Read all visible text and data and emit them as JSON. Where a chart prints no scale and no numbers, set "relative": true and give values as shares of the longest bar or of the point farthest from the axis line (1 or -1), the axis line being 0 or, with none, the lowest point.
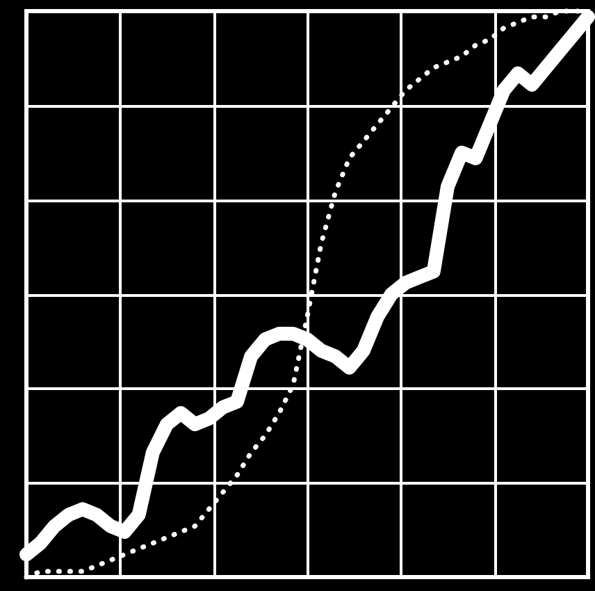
{
  "chart_data": {
    "type": "line",
    "relative": true,
    "grid": true,
    "categories": [
      null,
      null,
      null,
      null,
      null,
      null,
      null,
      null,
      null,
      null,
      null,
      null,
      null,
      null,
      null,
      null,
      null,
      null,
      null,
      null,
      null,
      null,
      null,
      null,
      null,
      null,
      null,
      null,
      null,
      null,
      null,
      null,
      null,
      null,
      null,
      null,
      null,
      null,
      null,
      null,
      null
    ],
    "series": [
      {
        "color": "#ffffff",
        "line_style": "solid",
        "values": [
          0.04,
          0.06,
          0.09,
          0.11,
          0.12,
          0.11,
          0.09,
          0.08,
          0.11,
          0.22,
          0.27,
          0.29,
          0.27,
          0.28,
          0.3,
          0.31,
          0.39,
          0.42,
          0.43,
          0.43,
          0.42,
          0.4,
          0.39,
          0.37,
          0.4,
          0.46,
          0.5,
          0.52,
          0.53,
          0.54,
          0.69,
          0.75,
          0.74,
          0.8,
          0.86,
          0.89,
          0.87,
          0.9,
          0.93,
          0.96,
          0.99
        ]
      },
      {
        "color": "#ffffff",
        "line_style": "dotted",
        "values": [
          0,
          0.01,
          0.01,
          0.01,
          0.01,
          0.02,
          0.03,
          0.04,
          0.05,
          0.06,
          0.07,
          0.08,
          0.09,
          0.12,
          0.15,
          0.18,
          0.22,
          0.25,
          0.29,
          0.34,
          0.46,
          0.59,
          0.68,
          0.74,
          0.77,
          0.8,
          0.83,
          0.86,
          0.88,
          0.9,
          0.91,
          0.92,
          0.94,
          0.95,
          0.97,
          0.98,
          0.99,
          0.99,
          1.0,
          1.0,
          1.0
        ]
      }
    ]
  }
}
